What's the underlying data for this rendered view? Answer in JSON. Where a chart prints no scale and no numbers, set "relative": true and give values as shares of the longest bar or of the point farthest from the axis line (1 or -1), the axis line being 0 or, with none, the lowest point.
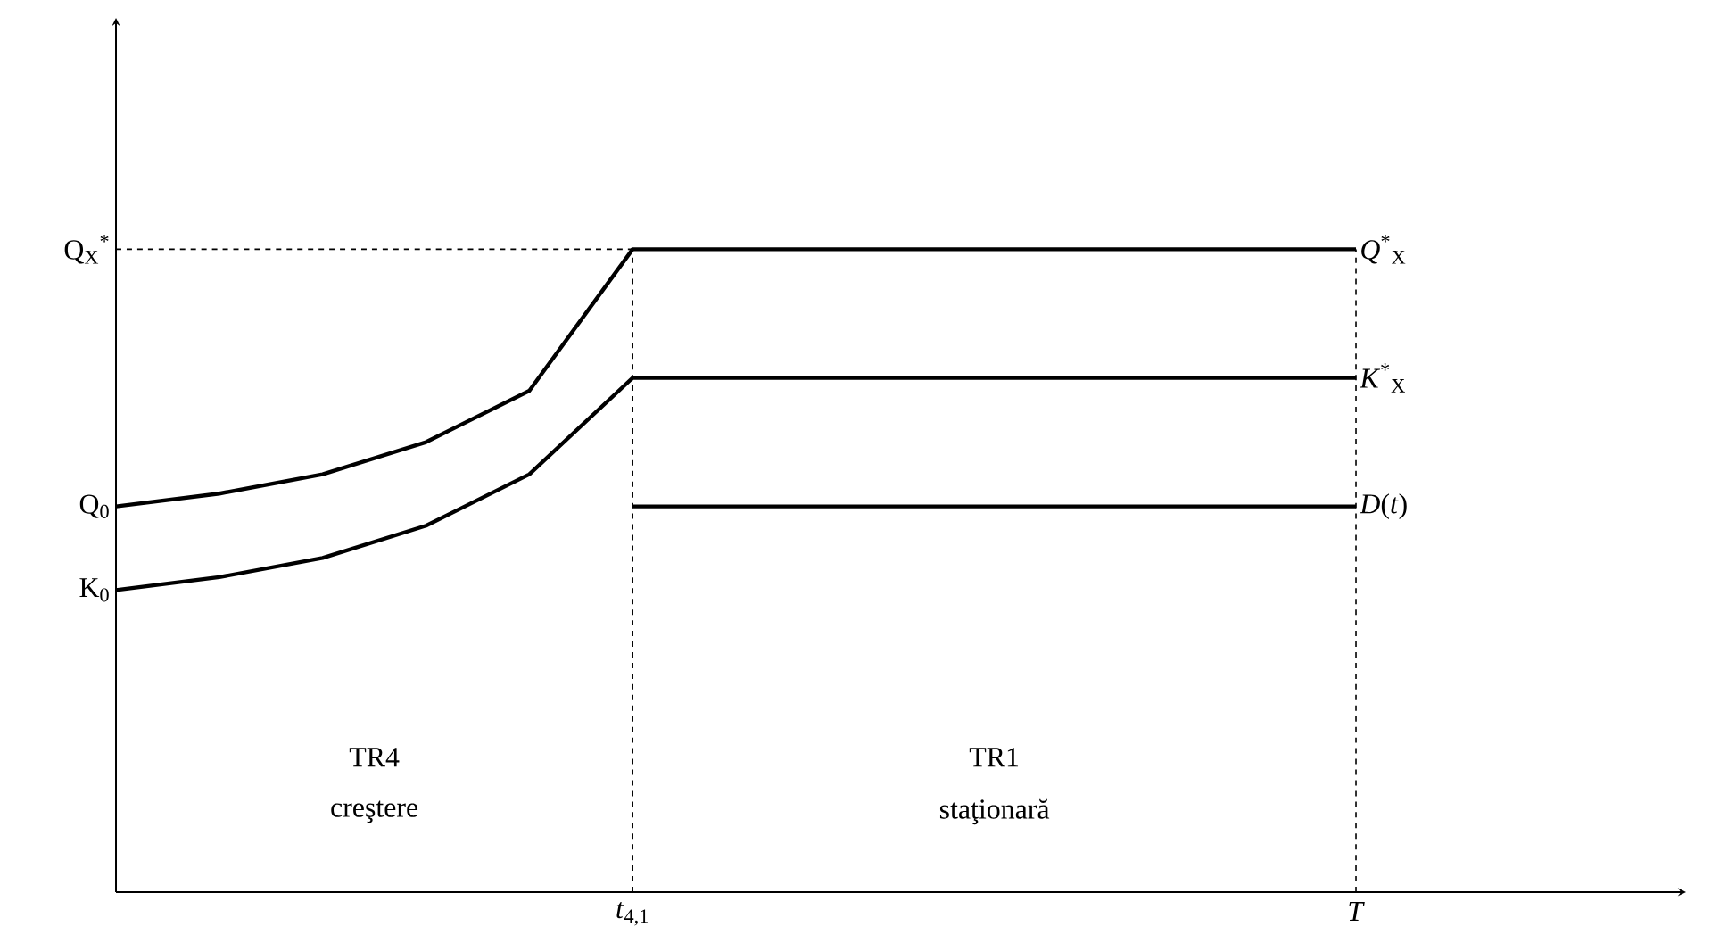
{
  "chart_data": {
    "type": "line",
    "relative": true,
    "categories": [
      null,
      null,
      null,
      null,
      null,
      "*t*$_{4,1}$",
      null,
      null,
      null,
      null,
      null,
      null,
      "*T*"
    ],
    "series": [
      {
        "name": "*Q*$^{*}$$_{X}$",
        "color": "#000000",
        "values": [
          0.6,
          0.62,
          0.65,
          0.7,
          0.78,
          1.0,
          1.0,
          1.0,
          1.0,
          1.0,
          1.0,
          1.0,
          1.0
        ]
      },
      {
        "name": "*K*$^{*}$$_{X}$",
        "color": "#000000",
        "values": [
          0.47,
          0.49,
          0.52,
          0.57,
          0.65,
          0.8,
          0.8,
          0.8,
          0.8,
          0.8,
          0.8,
          0.8,
          0.8
        ]
      },
      {
        "name": "*D*(*t*)",
        "color": "#000000",
        "values": [
          null,
          null,
          null,
          null,
          null,
          0.6,
          0.6,
          0.6,
          0.6,
          0.6,
          0.6,
          0.6,
          0.6
        ]
      }
    ],
    "ref_lines": [
      {
        "axis": "y",
        "value": 1.0,
        "label": "Q$_{X}$$^{*}$",
        "line_style": "dashed",
        "color": "#000000"
      },
      {
        "axis": "x",
        "value": "*t*$_{4,1}$",
        "line_style": "dashed",
        "color": "#000000"
      },
      {
        "axis": "x",
        "value": "*T*",
        "line_style": "dashed",
        "color": "#000000"
      }
    ],
    "annotations": [
      "TR4",
      "creştere",
      "TR1",
      "staţionară",
      "Q$_{0}$",
      "K$_{0}$"
    ]
  }
}
